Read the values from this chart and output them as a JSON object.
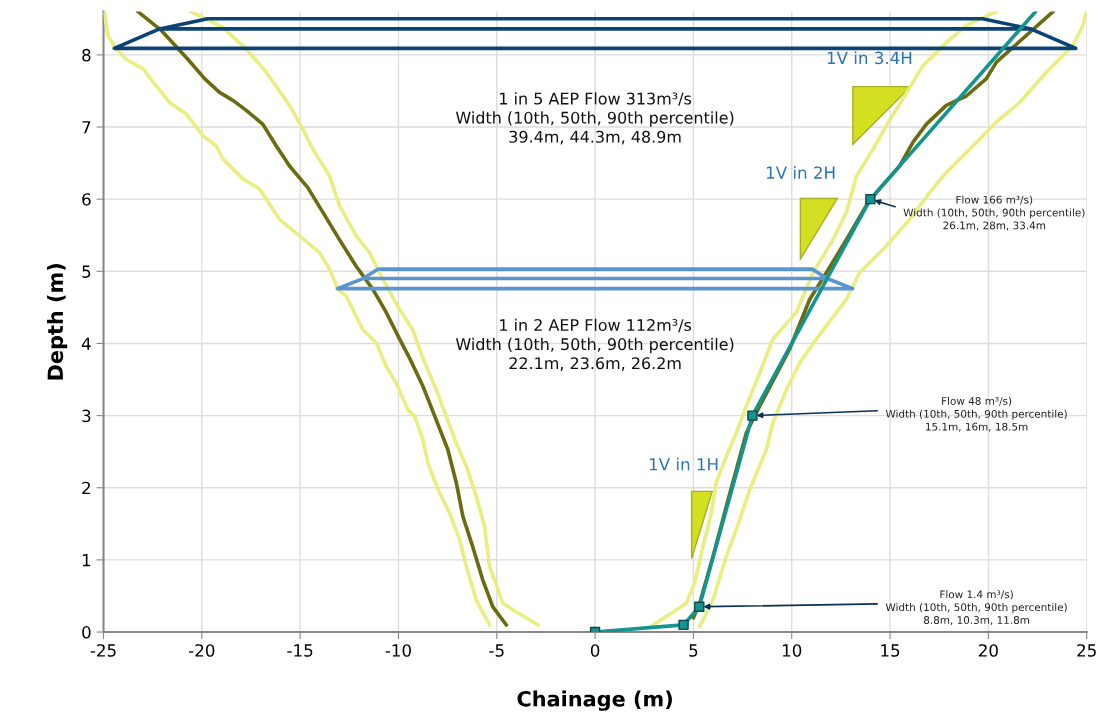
{
  "chart_data": {
    "type": "line",
    "xlabel": "Chainage (m)",
    "ylabel": "Depth (m)",
    "xlim": [
      -25,
      25
    ],
    "ylim": [
      0,
      8.6
    ],
    "xticks": [
      -25,
      -20,
      -15,
      -10,
      -5,
      0,
      5,
      10,
      15,
      20,
      25
    ],
    "yticks": [
      0,
      1,
      2,
      3,
      4,
      5,
      6,
      7,
      8
    ],
    "grid": true,
    "series": [
      {
        "type": "line",
        "color": "#e8ee80",
        "marker": "none",
        "x": [
          -24.95,
          -24.78,
          -24.35,
          -23.85,
          -23.0,
          -22.32,
          -21.64,
          -20.79,
          -19.95,
          -19.27,
          -18.93,
          -17.91,
          -17.06,
          -16.05,
          -15.03,
          -14.01,
          -13.5,
          -13.08,
          -12.66,
          -11.81,
          -11.13,
          -10.62,
          -10.11,
          -9.52,
          -9.18,
          -8.76,
          -8.5,
          -7.91,
          -7.4,
          -6.89,
          -6.55,
          -6.04,
          -5.37
        ],
        "values": [
          8.59,
          8.27,
          8.08,
          7.94,
          7.81,
          7.57,
          7.34,
          7.18,
          6.88,
          6.74,
          6.56,
          6.28,
          6.14,
          5.72,
          5.49,
          5.26,
          5.03,
          4.75,
          4.66,
          4.19,
          4.01,
          3.68,
          3.45,
          3.08,
          2.99,
          2.67,
          2.34,
          1.93,
          1.65,
          1.28,
          0.91,
          0.44,
          0.1
        ]
      },
      {
        "type": "line",
        "color": "#e8ee80",
        "marker": "none",
        "x": [
          -20.54,
          -18.93,
          -17.74,
          -16.72,
          -15.54,
          -14.86,
          -14.35,
          -13.5,
          -13.0,
          -12.15,
          -11.47,
          -10.79,
          -9.94,
          -9.27,
          -8.76,
          -8.08,
          -7.57,
          -7.06,
          -6.55,
          -6.04,
          -5.62,
          -5.37,
          -4.69,
          -4.01,
          -2.91
        ],
        "values": [
          8.6,
          8.38,
          8.08,
          7.76,
          7.3,
          6.97,
          6.69,
          6.32,
          5.91,
          5.49,
          5.26,
          4.89,
          4.47,
          4.19,
          3.8,
          3.36,
          2.99,
          2.62,
          2.3,
          1.88,
          1.46,
          0.91,
          0.4,
          0.28,
          0.1
        ]
      },
      {
        "type": "line",
        "color": "#e8ee80",
        "marker": "none",
        "x": [
          2.86,
          4.64,
          5.06,
          5.48,
          5.91,
          6.16,
          6.67,
          7.18,
          7.69,
          8.37,
          9.04,
          10.23,
          11.08,
          12.1,
          12.78,
          13.29,
          14.13,
          14.81,
          15.66,
          16.67,
          17.86,
          18.88,
          20.41
        ],
        "values": [
          0.08,
          0.4,
          0.68,
          1.18,
          1.65,
          2.07,
          2.43,
          2.76,
          3.13,
          3.59,
          4.06,
          4.43,
          4.98,
          5.44,
          5.82,
          6.32,
          6.69,
          7.02,
          7.39,
          7.85,
          8.17,
          8.41,
          8.6
        ]
      },
      {
        "type": "line",
        "color": "#e8ee80",
        "marker": "none",
        "x": [
          5.32,
          5.99,
          6.67,
          7.18,
          7.86,
          8.71,
          9.04,
          9.73,
          10.4,
          11.25,
          12.78,
          13.45,
          14.81,
          16.0,
          17.01,
          17.86,
          19.22,
          20.41,
          21.59,
          22.95,
          24.3,
          24.81,
          24.98
        ],
        "values": [
          0.08,
          0.44,
          1.05,
          1.42,
          1.97,
          2.53,
          2.9,
          3.36,
          3.73,
          4.06,
          4.61,
          4.98,
          5.35,
          5.72,
          6.09,
          6.37,
          6.74,
          7.07,
          7.34,
          7.76,
          8.13,
          8.41,
          8.59
        ]
      },
      {
        "type": "line",
        "color": "#6b6b10",
        "marker": "none",
        "x": [
          -23.25,
          -22.07,
          -20.71,
          -19.86,
          -19.1,
          -18.42,
          -17.74,
          -16.9,
          -16.22,
          -15.54,
          -14.61,
          -13.85,
          -13.0,
          -12.15,
          -11.3,
          -10.62,
          -9.94,
          -9.44,
          -8.76,
          -8.08,
          -7.49,
          -7.06,
          -6.72,
          -6.22,
          -5.71,
          -5.2,
          -4.52
        ],
        "values": [
          8.6,
          8.34,
          7.94,
          7.67,
          7.48,
          7.37,
          7.23,
          7.04,
          6.74,
          6.46,
          6.16,
          5.82,
          5.44,
          5.07,
          4.75,
          4.43,
          4.06,
          3.8,
          3.41,
          2.94,
          2.53,
          2.07,
          1.6,
          1.18,
          0.72,
          0.35,
          0.1
        ]
      },
      {
        "type": "line",
        "color": "#6b6b10",
        "marker": "none",
        "x": [
          5.0,
          5.32,
          6.0,
          6.67,
          7.69,
          8.37,
          9.89,
          10.91,
          11.76,
          12.78,
          13.79,
          14.3,
          15.49,
          16.17,
          16.85,
          17.86,
          18.88,
          19.9,
          20.41,
          23.29
        ],
        "values": [
          0.2,
          0.4,
          1.05,
          1.74,
          2.76,
          3.13,
          3.92,
          4.61,
          4.98,
          5.44,
          5.91,
          6.09,
          6.46,
          6.79,
          7.04,
          7.3,
          7.43,
          7.67,
          7.9,
          8.6
        ]
      },
      {
        "color": "#0b4474",
        "marker": "none",
        "x": [
          -22.15,
          -24.45,
          24.45,
          22.15,
          -22.15,
          -19.7,
          19.7,
          22.15
        ],
        "values": [
          8.36,
          8.09,
          8.09,
          8.36,
          8.36,
          8.5,
          8.5,
          8.36
        ]
      },
      {
        "color": "#5b95d0",
        "marker": "none",
        "x": [
          -11.8,
          -13.1,
          13.1,
          11.8,
          -11.8,
          -11.05,
          11.05,
          11.8
        ],
        "values": [
          4.9,
          4.76,
          4.76,
          4.9,
          4.9,
          5.03,
          5.03,
          4.9
        ]
      },
      {
        "color": "#13948f",
        "marker": "none",
        "x": [
          0,
          4.5,
          5.3,
          8,
          14,
          22.4
        ],
        "values": [
          0,
          0.1,
          0.35,
          3,
          6,
          8.6
        ]
      },
      {
        "type": "scatter",
        "color": "#13948f",
        "marker": "square",
        "x": [
          0,
          4.5,
          5.3,
          8,
          14
        ],
        "values": [
          0,
          0.1,
          0.35,
          3,
          6
        ]
      }
    ],
    "annotations": [
      "1 in 5 AEP Flow 313m³/s\nWidth (10th, 50th, 90th percentile)\n39.4m, 44.3m, 48.9m",
      "1 in 2 AEP Flow 112m³/s\nWidth (10th, 50th, 90th percentile)\n22.1m, 23.6m, 26.2m",
      "1V in 3.4H",
      "1V in 2H",
      "1V in 1H",
      {
        "text": "Flow 166 m³/s)\nWidth (10th, 50th, 90th percentile)\n26.1m, 28m, 33.4m",
        "x": 14,
        "y": 6
      },
      {
        "text": "Flow 48 m³/s)\nWidth (10th, 50th, 90th percentile)\n15.1m, 16m, 18.5m",
        "x": 8,
        "y": 3
      },
      {
        "text": "Flow 1.4 m³/s)\nWidth (10th, 50th, 90th percentile)\n8.8m, 10.3m, 11.8m",
        "x": 5.3,
        "y": 0.35
      }
    ]
  }
}
